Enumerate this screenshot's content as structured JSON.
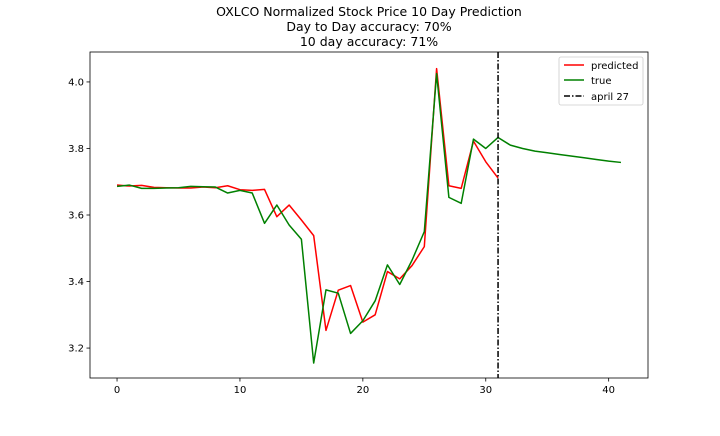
{
  "chart_data": {
    "type": "line",
    "title_lines": [
      "OXLCO Normalized Stock Price 10 Day Prediction",
      "Day to Day accuracy: 70%",
      "10 day accuracy: 71%"
    ],
    "xlabel": "",
    "ylabel": "",
    "xlim": [
      -2.2,
      43.2
    ],
    "ylim": [
      3.11,
      4.09
    ],
    "xticks": [
      0,
      10,
      20,
      30,
      40
    ],
    "yticks": [
      3.2,
      3.4,
      3.6,
      3.8,
      4.0
    ],
    "ytick_labels": [
      "3.2",
      "3.4",
      "3.6",
      "3.8",
      "4.0"
    ],
    "grid": false,
    "legend_position": "top-right",
    "series": [
      {
        "name": "predicted",
        "color": "#ff0000",
        "line_style": "solid",
        "x": [
          0,
          1,
          2,
          3,
          4,
          5,
          6,
          7,
          8,
          9,
          10,
          11,
          12,
          13,
          14,
          15,
          16,
          17,
          18,
          19,
          20,
          21,
          22,
          23,
          24,
          25,
          26,
          27,
          28,
          29,
          30,
          31
        ],
        "y": [
          3.69,
          3.687,
          3.689,
          3.683,
          3.682,
          3.681,
          3.681,
          3.684,
          3.682,
          3.688,
          3.676,
          3.674,
          3.677,
          3.595,
          3.63,
          3.585,
          3.538,
          3.253,
          3.374,
          3.388,
          3.278,
          3.3,
          3.43,
          3.408,
          3.448,
          3.505,
          4.04,
          3.688,
          3.68,
          3.822,
          3.76,
          3.711
        ]
      },
      {
        "name": "true",
        "color": "#008000",
        "line_style": "solid",
        "x": [
          0,
          1,
          2,
          3,
          4,
          5,
          6,
          7,
          8,
          9,
          10,
          11,
          12,
          13,
          14,
          15,
          16,
          17,
          18,
          19,
          20,
          21,
          22,
          23,
          24,
          25,
          26,
          27,
          28,
          29,
          30,
          31,
          32,
          33,
          34,
          35,
          36,
          37,
          38,
          39,
          40,
          41
        ],
        "y": [
          3.686,
          3.69,
          3.68,
          3.68,
          3.681,
          3.682,
          3.686,
          3.685,
          3.684,
          3.666,
          3.674,
          3.666,
          3.575,
          3.63,
          3.57,
          3.527,
          3.155,
          3.375,
          3.365,
          3.244,
          3.282,
          3.342,
          3.45,
          3.391,
          3.464,
          3.55,
          4.025,
          3.653,
          3.635,
          3.828,
          3.8,
          3.833,
          3.81,
          3.8,
          3.792,
          3.787,
          3.782,
          3.777,
          3.772,
          3.767,
          3.762,
          3.758
        ]
      },
      {
        "name": "april 27",
        "color": "#000000",
        "line_style": "dashdot",
        "vertical_x": 31
      }
    ]
  }
}
